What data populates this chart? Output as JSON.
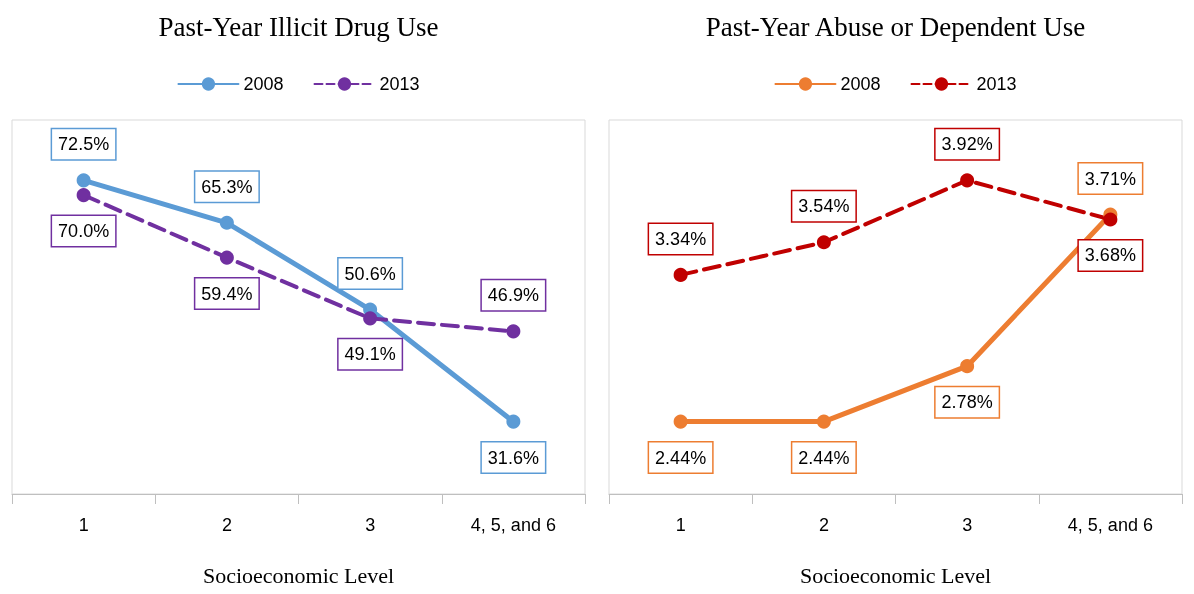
{
  "chart_data": [
    {
      "type": "line",
      "title": "Past-Year Illicit Drug Use",
      "xlabel": "Socioeconomic Level",
      "categories": [
        "1",
        "2",
        "3",
        "4, 5, and 6"
      ],
      "series": [
        {
          "name": "2008",
          "color": "#5b9bd5",
          "line_style": "solid",
          "values": [
            72.5,
            65.3,
            50.6,
            31.6
          ],
          "value_labels": [
            "72.5%",
            "65.3%",
            "50.6%",
            "31.6%"
          ]
        },
        {
          "name": "2013",
          "color": "#7030a0",
          "line_style": "dashed",
          "values": [
            70.0,
            59.4,
            49.1,
            46.9
          ],
          "value_labels": [
            "70.0%",
            "59.4%",
            "49.1%",
            "46.9%"
          ]
        }
      ],
      "marker": "circle",
      "legend": "top",
      "grid": false
    },
    {
      "type": "line",
      "title": "Past-Year Abuse or Dependent Use",
      "xlabel": "Socioeconomic Level",
      "categories": [
        "1",
        "2",
        "3",
        "4, 5, and 6"
      ],
      "series": [
        {
          "name": "2008",
          "color": "#ed7d31",
          "line_style": "solid",
          "values": [
            2.44,
            2.44,
            2.78,
            3.71
          ],
          "value_labels": [
            "2.44%",
            "2.44%",
            "2.78%",
            "3.71%"
          ]
        },
        {
          "name": "2013",
          "color": "#c00000",
          "line_style": "dashed",
          "values": [
            3.34,
            3.54,
            3.92,
            3.68
          ],
          "value_labels": [
            "3.34%",
            "3.54%",
            "3.92%",
            "3.68%"
          ]
        }
      ],
      "marker": "circle",
      "legend": "top",
      "grid": false
    }
  ]
}
